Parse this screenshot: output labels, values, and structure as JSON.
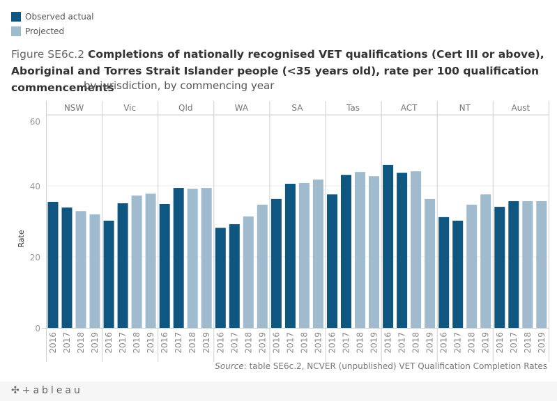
{
  "legend": [
    {
      "label": "Observed actual",
      "color": "#0f5680"
    },
    {
      "label": "Projected",
      "color": "#a0bbcd"
    }
  ],
  "title": {
    "prefix": "Figure SE6c.2",
    "main": "Completions of nationally recognised VET qualifications (Cert III or above), Aboriginal and Torres Strait Islander people (<35 years old), rate per 100 qualification commencements",
    "subtitle": "by jurisdiction, by commencing year"
  },
  "source": {
    "label": "Source",
    "text": ": table SE6c.2, NCVER (unpublished) VET Qualification Completion Rates"
  },
  "footer": {
    "logo": "+ableau",
    "logo_mark": "✣"
  },
  "chart_data": {
    "type": "bar",
    "title": "Completions of nationally recognised VET qualifications (Cert III or above), Aboriginal and Torres Strait Islander people (<35 years old), rate per 100 qualification commencements",
    "xlabel": "",
    "ylabel": "Rate",
    "ylim": [
      0,
      60
    ],
    "yticks": [
      0,
      20,
      40,
      60
    ],
    "grid": true,
    "legend_position": "top-left",
    "panels": [
      "NSW",
      "Vic",
      "Qld",
      "WA",
      "SA",
      "Tas",
      "ACT",
      "NT",
      "Aust"
    ],
    "categories": [
      "2016",
      "2017",
      "2018",
      "2019"
    ],
    "series_colors": {
      "Observed actual": "#0f5680",
      "Projected": "#a0bbcd"
    },
    "data": [
      {
        "panel": "NSW",
        "values": [
          35.5,
          33.9,
          32.9,
          32.0
        ],
        "types": [
          "Observed actual",
          "Observed actual",
          "Projected",
          "Projected"
        ]
      },
      {
        "panel": "Vic",
        "values": [
          30.2,
          35.1,
          37.3,
          37.8
        ],
        "types": [
          "Observed actual",
          "Observed actual",
          "Projected",
          "Projected"
        ]
      },
      {
        "panel": "Qld",
        "values": [
          34.9,
          39.4,
          39.2,
          39.4
        ],
        "types": [
          "Observed actual",
          "Observed actual",
          "Projected",
          "Projected"
        ]
      },
      {
        "panel": "WA",
        "values": [
          28.2,
          29.2,
          31.4,
          34.7
        ],
        "types": [
          "Observed actual",
          "Observed actual",
          "Projected",
          "Projected"
        ]
      },
      {
        "panel": "SA",
        "values": [
          36.3,
          40.6,
          40.8,
          41.8
        ],
        "types": [
          "Observed actual",
          "Observed actual",
          "Projected",
          "Projected"
        ]
      },
      {
        "panel": "Tas",
        "values": [
          37.6,
          43.1,
          43.9,
          42.7
        ],
        "types": [
          "Observed actual",
          "Observed actual",
          "Projected",
          "Projected"
        ]
      },
      {
        "panel": "ACT",
        "values": [
          45.9,
          43.7,
          44.1,
          36.3
        ],
        "types": [
          "Observed actual",
          "Observed actual",
          "Projected",
          "Projected"
        ]
      },
      {
        "panel": "NT",
        "values": [
          31.2,
          30.2,
          34.7,
          37.6
        ],
        "types": [
          "Observed actual",
          "Observed actual",
          "Projected",
          "Projected"
        ]
      },
      {
        "panel": "Aust",
        "values": [
          34.1,
          35.7,
          35.7,
          35.7
        ],
        "types": [
          "Observed actual",
          "Observed actual",
          "Projected",
          "Projected"
        ]
      }
    ]
  }
}
